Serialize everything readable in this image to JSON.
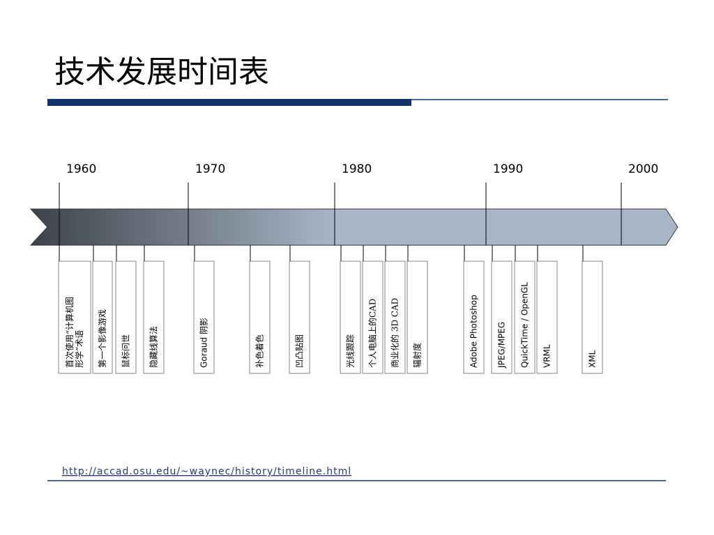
{
  "header": {
    "title": "技术发展时间表"
  },
  "timeline": {
    "years": [
      "1960",
      "1970",
      "1980",
      "1990",
      "2000"
    ],
    "events": [
      {
        "lines": [
          "首次使用“计算机图",
          "形学”术语"
        ]
      },
      {
        "lines": [
          "第一个影像游戏"
        ]
      },
      {
        "lines": [
          "鼠标问世"
        ]
      },
      {
        "lines": [
          "隐藏线算法"
        ]
      },
      {
        "lines": [
          "Goraud 阴影"
        ]
      },
      {
        "lines": [
          "补色着色"
        ]
      },
      {
        "lines": [
          "凹凸贴图"
        ]
      },
      {
        "lines": [
          "光线跟踪"
        ]
      },
      {
        "lines": [
          "个人电脑上的CAD"
        ]
      },
      {
        "lines": [
          "商业化的 3D CAD"
        ]
      },
      {
        "lines": [
          "辐射度"
        ]
      },
      {
        "lines": [
          "Adobe Photoshop"
        ]
      },
      {
        "lines": [
          "JPEG/MPEG"
        ]
      },
      {
        "lines": [
          "QuickTime / OpenGL"
        ]
      },
      {
        "lines": [
          "VRML"
        ]
      },
      {
        "lines": [
          "XML"
        ]
      }
    ]
  },
  "footer": {
    "link": "http://accad.osu.edu/~waynec/history/timeline.html"
  }
}
